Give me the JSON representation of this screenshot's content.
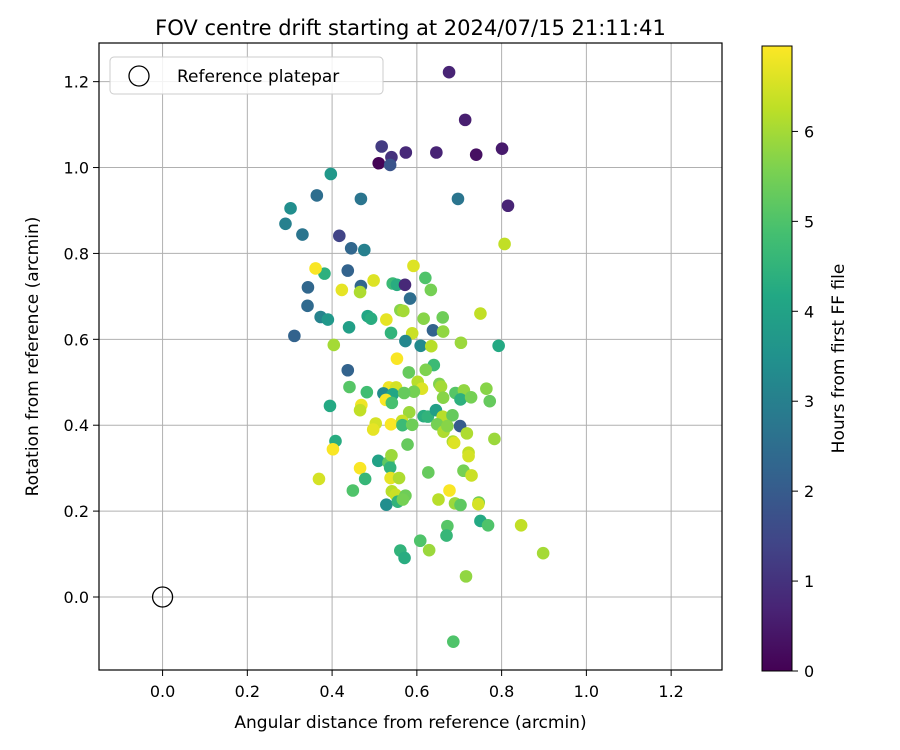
{
  "chart_data": {
    "type": "scatter",
    "title": "FOV centre drift starting at 2024/07/15 21:11:41",
    "xlabel": "Angular distance from reference (arcmin)",
    "ylabel": "Rotation from reference (arcmin)",
    "xlim": [
      -0.15,
      1.32
    ],
    "ylim": [
      -0.17,
      1.29
    ],
    "xticks": [
      0.0,
      0.2,
      0.4,
      0.6,
      0.8,
      1.0,
      1.2
    ],
    "yticks": [
      0.0,
      0.2,
      0.4,
      0.6,
      0.8,
      1.0,
      1.2
    ],
    "grid": true,
    "legend": {
      "position": "top-left",
      "entries": [
        "Reference platepar"
      ]
    },
    "reference_point": {
      "x": 0.0,
      "y": 0.0,
      "marker": "open-circle"
    },
    "colorbar": {
      "label": "Hours from first FF file",
      "colormap": "viridis",
      "range": [
        0,
        6.95
      ],
      "ticks": [
        0,
        1,
        2,
        3,
        4,
        5,
        6
      ]
    },
    "points": [
      [
        0.676,
        1.222,
        0.7
      ],
      [
        0.714,
        1.111,
        0.6
      ],
      [
        0.517,
        1.049,
        1.2
      ],
      [
        0.54,
        1.024,
        1.0
      ],
      [
        0.574,
        1.035,
        0.8
      ],
      [
        0.646,
        1.035,
        0.7
      ],
      [
        0.801,
        1.044,
        0.5
      ],
      [
        0.74,
        1.03,
        0.3
      ],
      [
        0.51,
        1.01,
        0.05
      ],
      [
        0.537,
        1.006,
        1.8
      ],
      [
        0.815,
        0.911,
        0.7
      ],
      [
        0.397,
        0.985,
        3.7
      ],
      [
        0.364,
        0.935,
        2.5
      ],
      [
        0.468,
        0.927,
        2.7
      ],
      [
        0.697,
        0.927,
        2.7
      ],
      [
        0.302,
        0.905,
        3.4
      ],
      [
        0.29,
        0.869,
        3.0
      ],
      [
        0.33,
        0.844,
        2.7
      ],
      [
        0.417,
        0.841,
        1.4
      ],
      [
        0.445,
        0.812,
        2.3
      ],
      [
        0.476,
        0.808,
        3.0
      ],
      [
        0.807,
        0.822,
        6.3
      ],
      [
        0.382,
        0.753,
        4.4
      ],
      [
        0.361,
        0.765,
        6.9
      ],
      [
        0.437,
        0.76,
        2.2
      ],
      [
        0.592,
        0.771,
        6.6
      ],
      [
        0.62,
        0.743,
        5.0
      ],
      [
        0.343,
        0.721,
        2.3
      ],
      [
        0.468,
        0.724,
        2.3
      ],
      [
        0.466,
        0.71,
        6.1
      ],
      [
        0.423,
        0.715,
        6.7
      ],
      [
        0.543,
        0.73,
        4.7
      ],
      [
        0.553,
        0.727,
        4.3
      ],
      [
        0.572,
        0.727,
        0.8
      ],
      [
        0.584,
        0.695,
        2.5
      ],
      [
        0.498,
        0.737,
        6.6
      ],
      [
        0.633,
        0.715,
        5.5
      ],
      [
        0.342,
        0.678,
        2.4
      ],
      [
        0.373,
        0.652,
        3.1
      ],
      [
        0.39,
        0.646,
        3.7
      ],
      [
        0.484,
        0.654,
        4.1
      ],
      [
        0.492,
        0.648,
        4.3
      ],
      [
        0.528,
        0.646,
        6.7
      ],
      [
        0.561,
        0.668,
        5.7
      ],
      [
        0.568,
        0.666,
        6.0
      ],
      [
        0.616,
        0.648,
        5.7
      ],
      [
        0.661,
        0.651,
        5.4
      ],
      [
        0.75,
        0.66,
        6.3
      ],
      [
        0.44,
        0.628,
        3.9
      ],
      [
        0.539,
        0.615,
        4.5
      ],
      [
        0.311,
        0.608,
        2.2
      ],
      [
        0.638,
        0.621,
        2.2
      ],
      [
        0.662,
        0.618,
        5.8
      ],
      [
        0.589,
        0.614,
        6.4
      ],
      [
        0.404,
        0.587,
        6.0
      ],
      [
        0.573,
        0.596,
        3.2
      ],
      [
        0.609,
        0.585,
        3.3
      ],
      [
        0.634,
        0.584,
        6.2
      ],
      [
        0.704,
        0.592,
        5.9
      ],
      [
        0.793,
        0.585,
        4.2
      ],
      [
        0.553,
        0.555,
        6.9
      ],
      [
        0.437,
        0.528,
        2.2
      ],
      [
        0.64,
        0.54,
        4.7
      ],
      [
        0.581,
        0.523,
        5.3
      ],
      [
        0.621,
        0.529,
        5.6
      ],
      [
        0.602,
        0.501,
        6.2
      ],
      [
        0.441,
        0.489,
        5.1
      ],
      [
        0.534,
        0.488,
        6.8
      ],
      [
        0.551,
        0.488,
        6.5
      ],
      [
        0.653,
        0.496,
        5.6
      ],
      [
        0.657,
        0.49,
        6.0
      ],
      [
        0.612,
        0.485,
        6.6
      ],
      [
        0.593,
        0.478,
        5.5
      ],
      [
        0.482,
        0.477,
        4.8
      ],
      [
        0.521,
        0.474,
        3.3
      ],
      [
        0.543,
        0.472,
        4.1
      ],
      [
        0.57,
        0.475,
        5.3
      ],
      [
        0.691,
        0.475,
        5.1
      ],
      [
        0.711,
        0.481,
        5.8
      ],
      [
        0.764,
        0.485,
        5.7
      ],
      [
        0.662,
        0.464,
        5.7
      ],
      [
        0.703,
        0.46,
        4.4
      ],
      [
        0.728,
        0.465,
        5.5
      ],
      [
        0.772,
        0.456,
        5.3
      ],
      [
        0.527,
        0.459,
        6.9
      ],
      [
        0.541,
        0.452,
        4.9
      ],
      [
        0.469,
        0.447,
        6.8
      ],
      [
        0.466,
        0.435,
        6.3
      ],
      [
        0.395,
        0.445,
        4.2
      ],
      [
        0.582,
        0.43,
        5.9
      ],
      [
        0.616,
        0.421,
        4.3
      ],
      [
        0.626,
        0.42,
        4.5
      ],
      [
        0.645,
        0.435,
        3.9
      ],
      [
        0.661,
        0.42,
        6.2
      ],
      [
        0.684,
        0.423,
        5.3
      ],
      [
        0.702,
        0.398,
        2.0
      ],
      [
        0.539,
        0.402,
        6.9
      ],
      [
        0.503,
        0.404,
        6.5
      ],
      [
        0.497,
        0.39,
        6.7
      ],
      [
        0.565,
        0.41,
        6.4
      ],
      [
        0.566,
        0.4,
        4.7
      ],
      [
        0.589,
        0.401,
        5.4
      ],
      [
        0.648,
        0.402,
        5.5
      ],
      [
        0.663,
        0.385,
        6.1
      ],
      [
        0.672,
        0.398,
        5.7
      ],
      [
        0.718,
        0.381,
        6.1
      ],
      [
        0.783,
        0.368,
        5.9
      ],
      [
        0.408,
        0.363,
        4.3
      ],
      [
        0.402,
        0.344,
        6.9
      ],
      [
        0.578,
        0.355,
        5.3
      ],
      [
        0.685,
        0.362,
        6.1
      ],
      [
        0.688,
        0.359,
        6.6
      ],
      [
        0.722,
        0.336,
        6.3
      ],
      [
        0.722,
        0.328,
        6.5
      ],
      [
        0.509,
        0.317,
        4.0
      ],
      [
        0.533,
        0.313,
        5.2
      ],
      [
        0.54,
        0.33,
        5.9
      ],
      [
        0.537,
        0.301,
        4.5
      ],
      [
        0.627,
        0.29,
        5.3
      ],
      [
        0.71,
        0.294,
        5.5
      ],
      [
        0.466,
        0.3,
        6.9
      ],
      [
        0.369,
        0.275,
        6.5
      ],
      [
        0.478,
        0.275,
        4.6
      ],
      [
        0.538,
        0.277,
        6.7
      ],
      [
        0.558,
        0.277,
        6.1
      ],
      [
        0.729,
        0.283,
        6.4
      ],
      [
        0.449,
        0.248,
        5.0
      ],
      [
        0.541,
        0.246,
        6.2
      ],
      [
        0.55,
        0.238,
        6.4
      ],
      [
        0.573,
        0.236,
        5.4
      ],
      [
        0.651,
        0.227,
        6.2
      ],
      [
        0.677,
        0.248,
        6.9
      ],
      [
        0.528,
        0.215,
        3.4
      ],
      [
        0.555,
        0.222,
        4.5
      ],
      [
        0.567,
        0.227,
        5.5
      ],
      [
        0.69,
        0.218,
        5.9
      ],
      [
        0.703,
        0.214,
        5.2
      ],
      [
        0.746,
        0.22,
        5.4
      ],
      [
        0.745,
        0.216,
        6.5
      ],
      [
        0.672,
        0.165,
        5.1
      ],
      [
        0.75,
        0.177,
        4.2
      ],
      [
        0.768,
        0.167,
        5.0
      ],
      [
        0.846,
        0.167,
        6.3
      ],
      [
        0.608,
        0.131,
        5.0
      ],
      [
        0.67,
        0.143,
        4.6
      ],
      [
        0.629,
        0.109,
        5.9
      ],
      [
        0.561,
        0.108,
        4.5
      ],
      [
        0.571,
        0.091,
        4.3
      ],
      [
        0.898,
        0.102,
        6.0
      ],
      [
        0.716,
        0.048,
        5.8
      ],
      [
        0.686,
        -0.104,
        5.0
      ]
    ]
  }
}
